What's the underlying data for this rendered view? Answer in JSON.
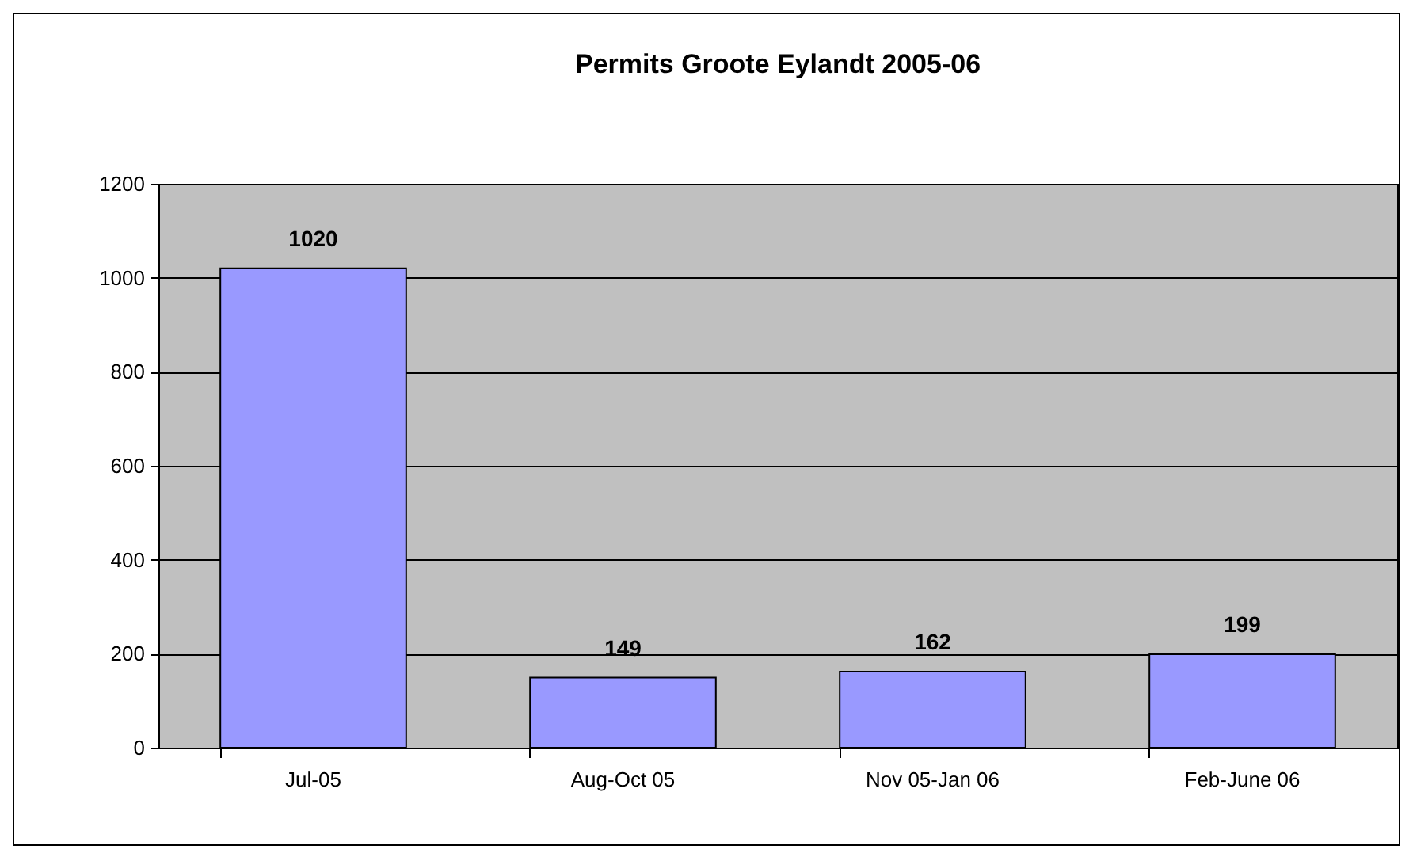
{
  "chart_data": {
    "type": "bar",
    "title": "Permits Groote Eylandt 2005-06",
    "categories": [
      "Jul-05",
      "Aug-Oct 05",
      "Nov 05-Jan 06",
      "Feb-June 06"
    ],
    "values": [
      1020,
      149,
      162,
      199
    ],
    "color": "#9999ff",
    "ylim": [
      0,
      1200
    ],
    "yticks": [
      0,
      200,
      400,
      600,
      800,
      1000,
      1200
    ],
    "grid": "y",
    "data_labels": true
  }
}
